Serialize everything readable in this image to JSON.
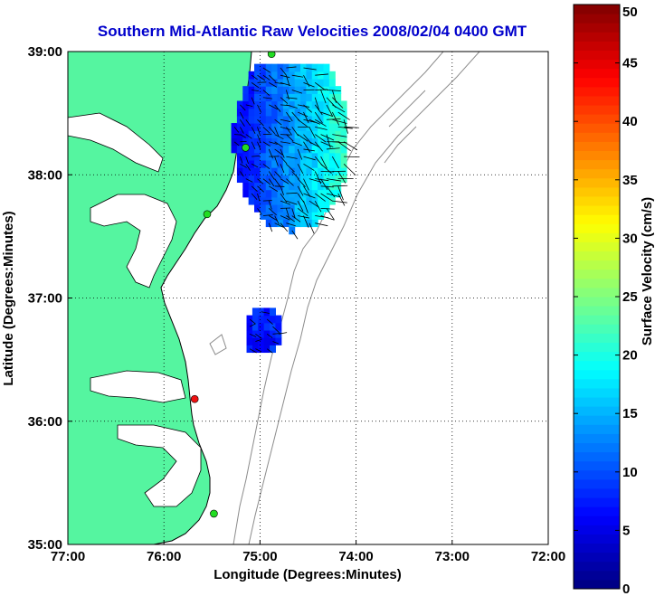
{
  "title": "Southern Mid-Atlantic Raw Velocities 2008/02/04 0400 GMT",
  "xlabel": "Longitude (Degrees:Minutes)",
  "ylabel": "Latitude (Degrees:Minutes)",
  "colorbar_label": "Surface Velocity (cm/s)",
  "colors": {
    "land": "#55f5a0",
    "coastline": "#000000",
    "bathymetry": "#8c8c8c",
    "title": "#0000cc",
    "station_active": "#22dd22",
    "station_alert": "#ee1111"
  },
  "chart_data": {
    "type": "map",
    "xlim": [
      -77.0,
      -72.0
    ],
    "ylim": [
      35.0,
      39.0
    ],
    "x_ticks": [
      {
        "value": -77.0,
        "label": "77:00"
      },
      {
        "value": -76.0,
        "label": "76:00"
      },
      {
        "value": -75.0,
        "label": "75:00"
      },
      {
        "value": -74.0,
        "label": "74:00"
      },
      {
        "value": -73.0,
        "label": "73:00"
      },
      {
        "value": -72.0,
        "label": "72:00"
      }
    ],
    "y_ticks": [
      {
        "value": 39.0,
        "label": "39:00"
      },
      {
        "value": 38.0,
        "label": "38:00"
      },
      {
        "value": 37.0,
        "label": "37:00"
      },
      {
        "value": 36.0,
        "label": "36:00"
      },
      {
        "value": 35.0,
        "label": "35:00"
      }
    ],
    "grid": "dotted",
    "colorbar": {
      "min": 0,
      "max": 50,
      "colormap": "jet",
      "ticks": [
        {
          "value": 0,
          "label": "0"
        },
        {
          "value": 5,
          "label": "5"
        },
        {
          "value": 10,
          "label": "10"
        },
        {
          "value": 15,
          "label": "15"
        },
        {
          "value": 20,
          "label": "20"
        },
        {
          "value": 25,
          "label": "25"
        },
        {
          "value": 30,
          "label": "30"
        },
        {
          "value": 35,
          "label": "35"
        },
        {
          "value": 40,
          "label": "40"
        },
        {
          "value": 45,
          "label": "45"
        },
        {
          "value": 50,
          "label": "50"
        }
      ]
    },
    "stations": [
      {
        "lon": -74.88,
        "lat": 38.98,
        "status": "active"
      },
      {
        "lon": -75.15,
        "lat": 38.22,
        "status": "active"
      },
      {
        "lon": -75.55,
        "lat": 37.68,
        "status": "active"
      },
      {
        "lon": -75.68,
        "lat": 36.18,
        "status": "alert"
      },
      {
        "lon": -75.48,
        "lat": 35.25,
        "status": "active"
      }
    ],
    "velocity_regions": [
      {
        "name": "north",
        "lon_range": [
          -75.3,
          -74.1
        ],
        "lat_range": [
          37.4,
          38.85
        ],
        "speed_range": [
          4,
          22
        ]
      },
      {
        "name": "south",
        "lon_range": [
          -75.2,
          -74.8
        ],
        "lat_range": [
          36.5,
          36.9
        ],
        "speed_range": [
          5,
          10
        ]
      }
    ]
  }
}
